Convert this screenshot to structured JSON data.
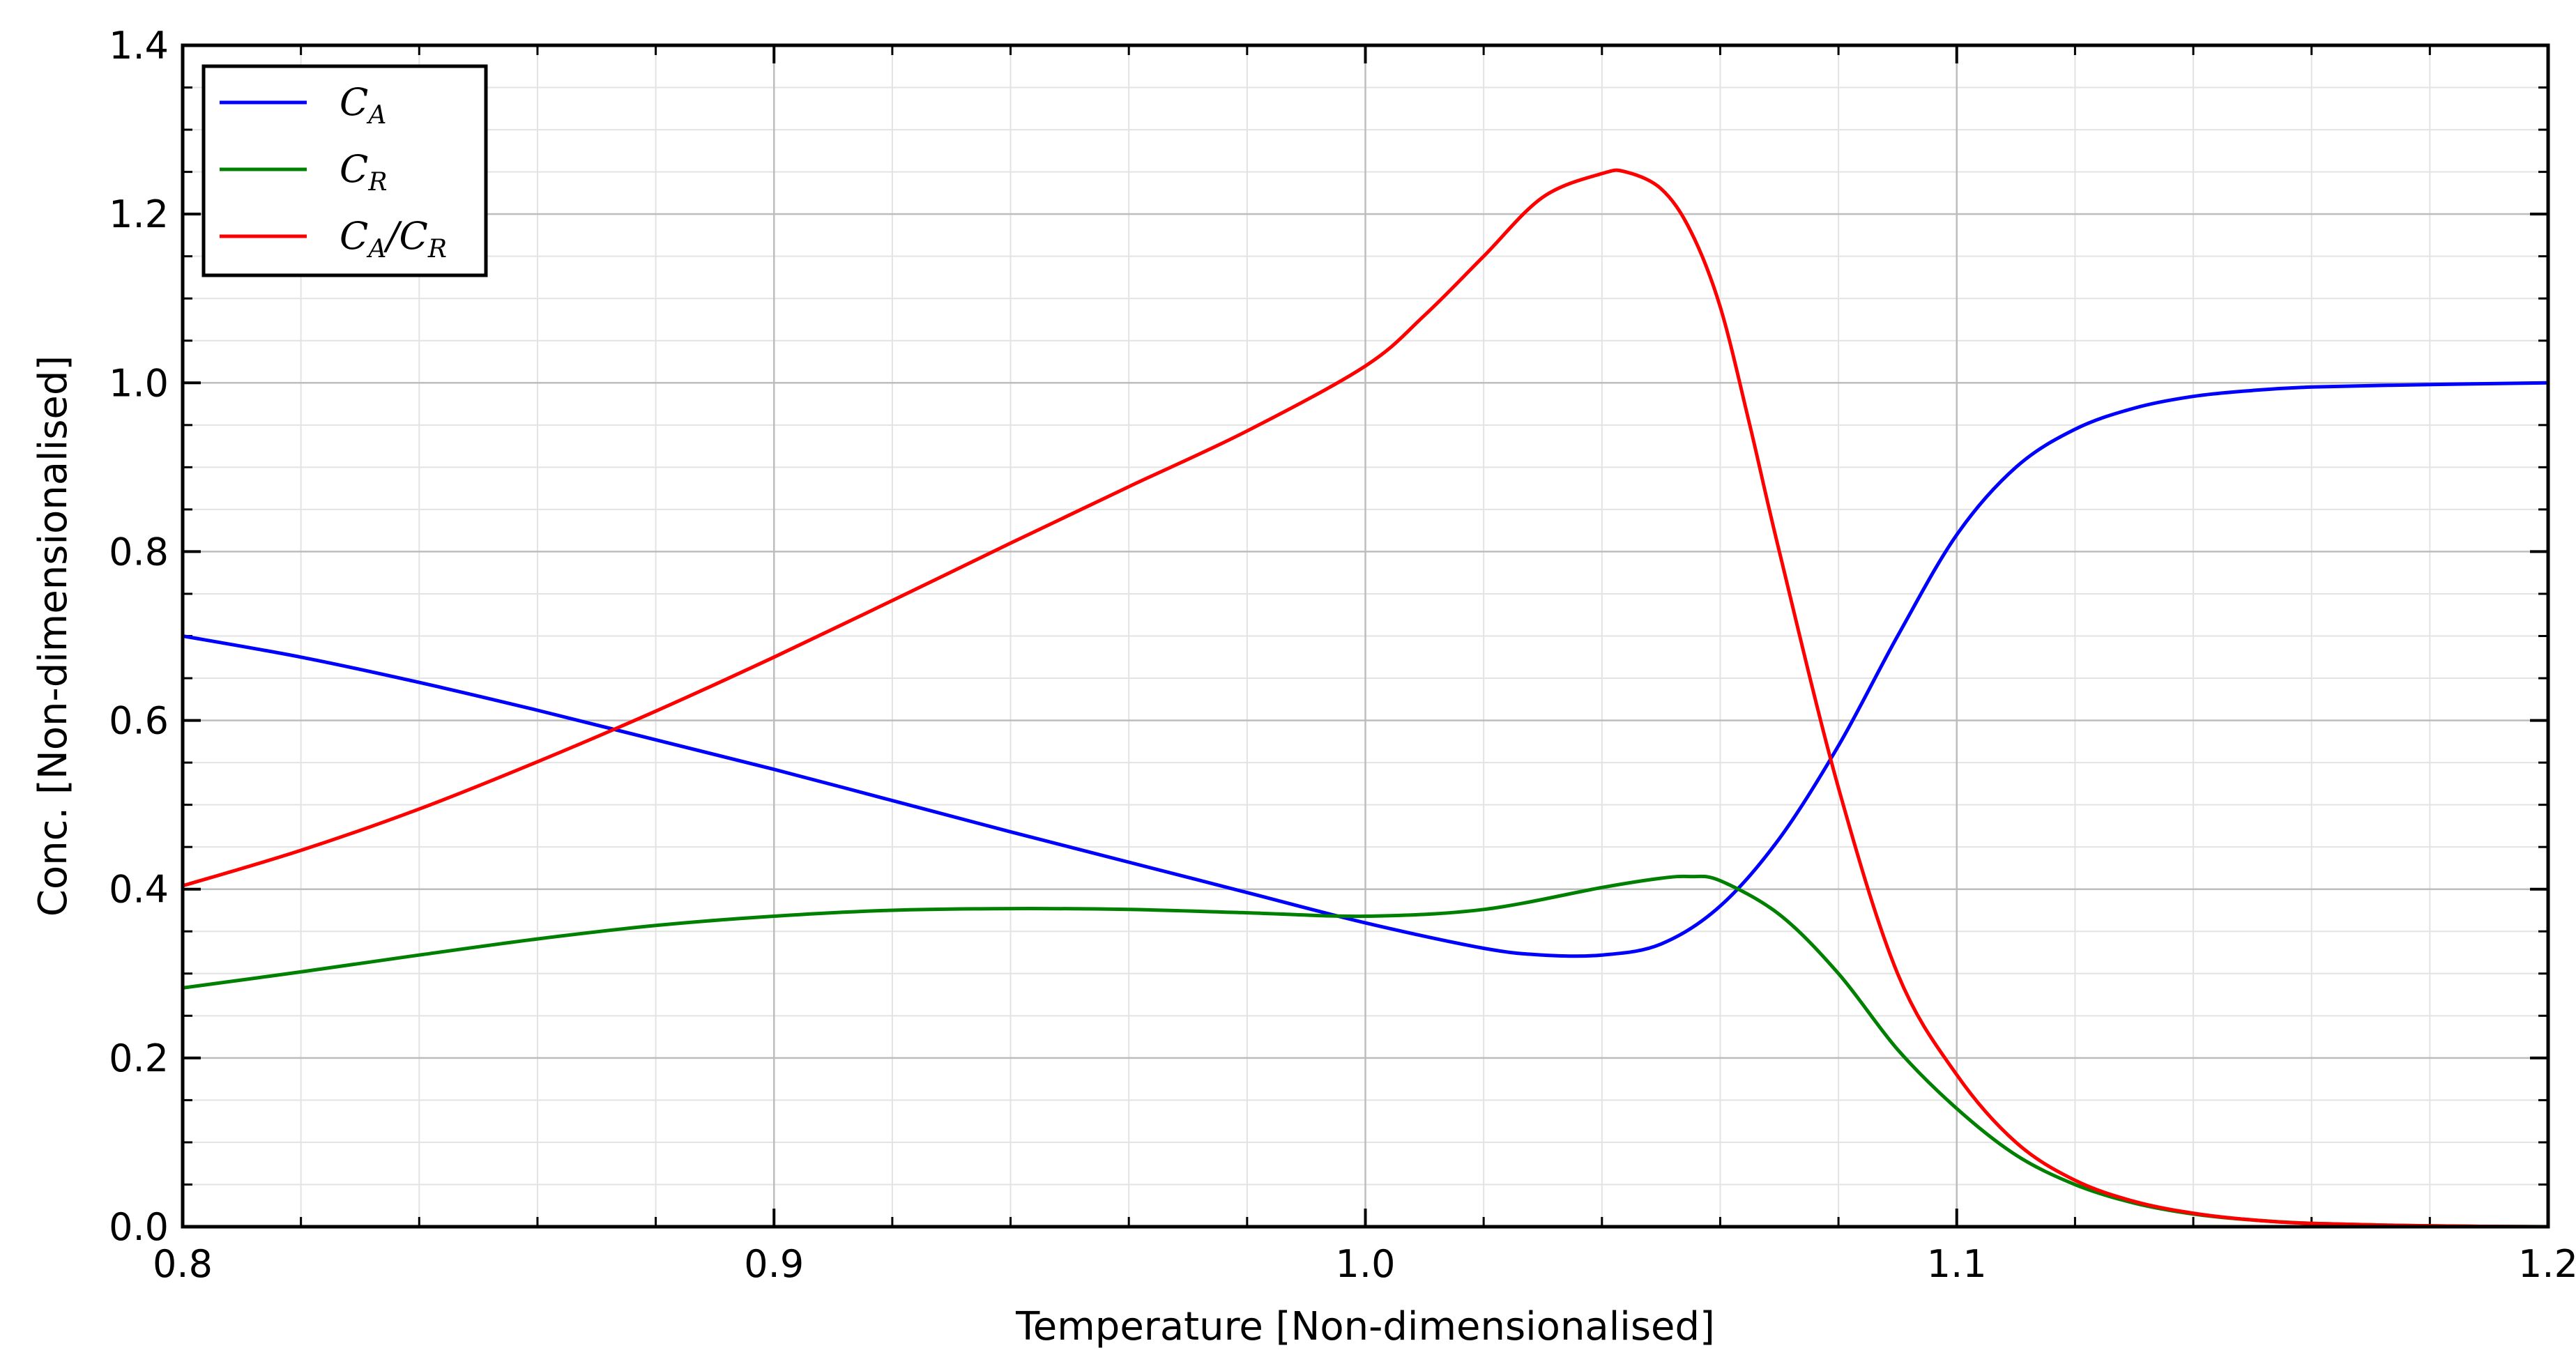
{
  "chart_data": {
    "type": "line",
    "xlabel": "Temperature [Non-dimensionalised]",
    "ylabel": "Conc. [Non-dimensionalised]",
    "xlim": [
      0.8,
      1.2
    ],
    "ylim": [
      0.0,
      1.4
    ],
    "xticks": [
      0.8,
      0.9,
      1.0,
      1.1,
      1.2
    ],
    "xtick_labels": [
      "0.8",
      "0.9",
      "1.0",
      "1.1",
      "1.2"
    ],
    "yticks": [
      0.0,
      0.2,
      0.4,
      0.6,
      0.8,
      1.0,
      1.2,
      1.4
    ],
    "ytick_labels": [
      "0.0",
      "0.2",
      "0.4",
      "0.6",
      "0.8",
      "1.0",
      "1.2",
      "1.4"
    ],
    "grid": true,
    "legend_position": "top-left",
    "series": [
      {
        "name": "C_A",
        "legend_main": "C",
        "legend_sub": "A",
        "color": "#0000ff",
        "x": [
          0.8,
          0.82,
          0.84,
          0.86,
          0.88,
          0.9,
          0.92,
          0.94,
          0.96,
          0.98,
          1.0,
          1.02,
          1.03,
          1.04,
          1.05,
          1.06,
          1.07,
          1.08,
          1.09,
          1.1,
          1.11,
          1.12,
          1.13,
          1.14,
          1.15,
          1.16,
          1.18,
          1.2
        ],
        "y": [
          0.7,
          0.675,
          0.645,
          0.612,
          0.577,
          0.542,
          0.505,
          0.468,
          0.432,
          0.396,
          0.36,
          0.33,
          0.322,
          0.322,
          0.335,
          0.38,
          0.46,
          0.57,
          0.7,
          0.82,
          0.9,
          0.945,
          0.97,
          0.984,
          0.991,
          0.995,
          0.998,
          1.0
        ]
      },
      {
        "name": "C_R",
        "legend_main": "C",
        "legend_sub": "R",
        "color": "#008000",
        "x": [
          0.8,
          0.82,
          0.84,
          0.86,
          0.88,
          0.9,
          0.92,
          0.94,
          0.96,
          0.98,
          1.0,
          1.02,
          1.04,
          1.05,
          1.055,
          1.06,
          1.07,
          1.08,
          1.09,
          1.1,
          1.11,
          1.12,
          1.13,
          1.14,
          1.15,
          1.16,
          1.18,
          1.2
        ],
        "y": [
          0.283,
          0.302,
          0.322,
          0.341,
          0.357,
          0.368,
          0.375,
          0.377,
          0.376,
          0.372,
          0.368,
          0.376,
          0.402,
          0.413,
          0.415,
          0.41,
          0.37,
          0.3,
          0.21,
          0.14,
          0.085,
          0.05,
          0.028,
          0.015,
          0.008,
          0.004,
          0.001,
          0.0
        ]
      },
      {
        "name": "C_A/C_R",
        "legend_main": "C",
        "legend_sub": "A",
        "legend_mid": "/C",
        "legend_sub2": "R",
        "color": "#ff0000",
        "x": [
          0.8,
          0.82,
          0.84,
          0.86,
          0.88,
          0.9,
          0.92,
          0.94,
          0.96,
          0.98,
          1.0,
          1.01,
          1.02,
          1.03,
          1.04,
          1.044,
          1.05,
          1.055,
          1.06,
          1.065,
          1.07,
          1.08,
          1.09,
          1.1,
          1.11,
          1.12,
          1.13,
          1.14,
          1.15,
          1.16,
          1.18,
          1.2
        ],
        "y": [
          0.404,
          0.446,
          0.495,
          0.551,
          0.611,
          0.675,
          0.742,
          0.81,
          0.877,
          0.943,
          1.02,
          1.08,
          1.15,
          1.22,
          1.248,
          1.25,
          1.23,
          1.18,
          1.09,
          0.95,
          0.8,
          0.52,
          0.3,
          0.18,
          0.1,
          0.055,
          0.03,
          0.016,
          0.008,
          0.004,
          0.001,
          0.0
        ]
      }
    ]
  }
}
